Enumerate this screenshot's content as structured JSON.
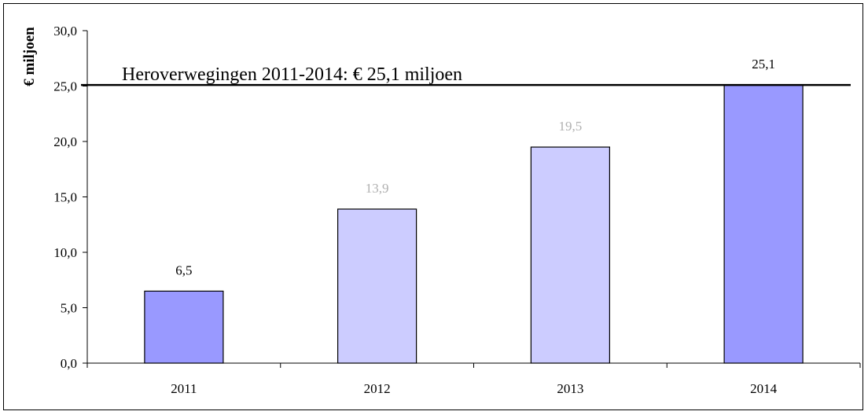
{
  "chart_data": {
    "type": "bar",
    "categories": [
      "2011",
      "2012",
      "2013",
      "2014"
    ],
    "values": [
      6.5,
      13.9,
      19.5,
      25.1
    ],
    "data_labels": [
      "6,5",
      "13,9",
      "19,5",
      "25,1"
    ],
    "bar_colors": [
      "#9999ff",
      "#ccccff",
      "#ccccff",
      "#9999ff"
    ],
    "label_colors": [
      "#000000",
      "#b0b0b0",
      "#b0b0b0",
      "#000000"
    ],
    "title": "",
    "xlabel": "",
    "ylabel": "€ miljoen",
    "ylim": [
      0,
      30
    ],
    "yticks": [
      0,
      5,
      10,
      15,
      20,
      25,
      30
    ],
    "ytick_labels": [
      "0,0",
      "5,0",
      "10,0",
      "15,0",
      "20,0",
      "25,0",
      "30,0"
    ],
    "reference_line": {
      "value": 25.1,
      "label": "Heroverwegingen 2011-2014: € 25,1 miljoen",
      "color": "#000000"
    },
    "grid": false,
    "legend": "none"
  }
}
